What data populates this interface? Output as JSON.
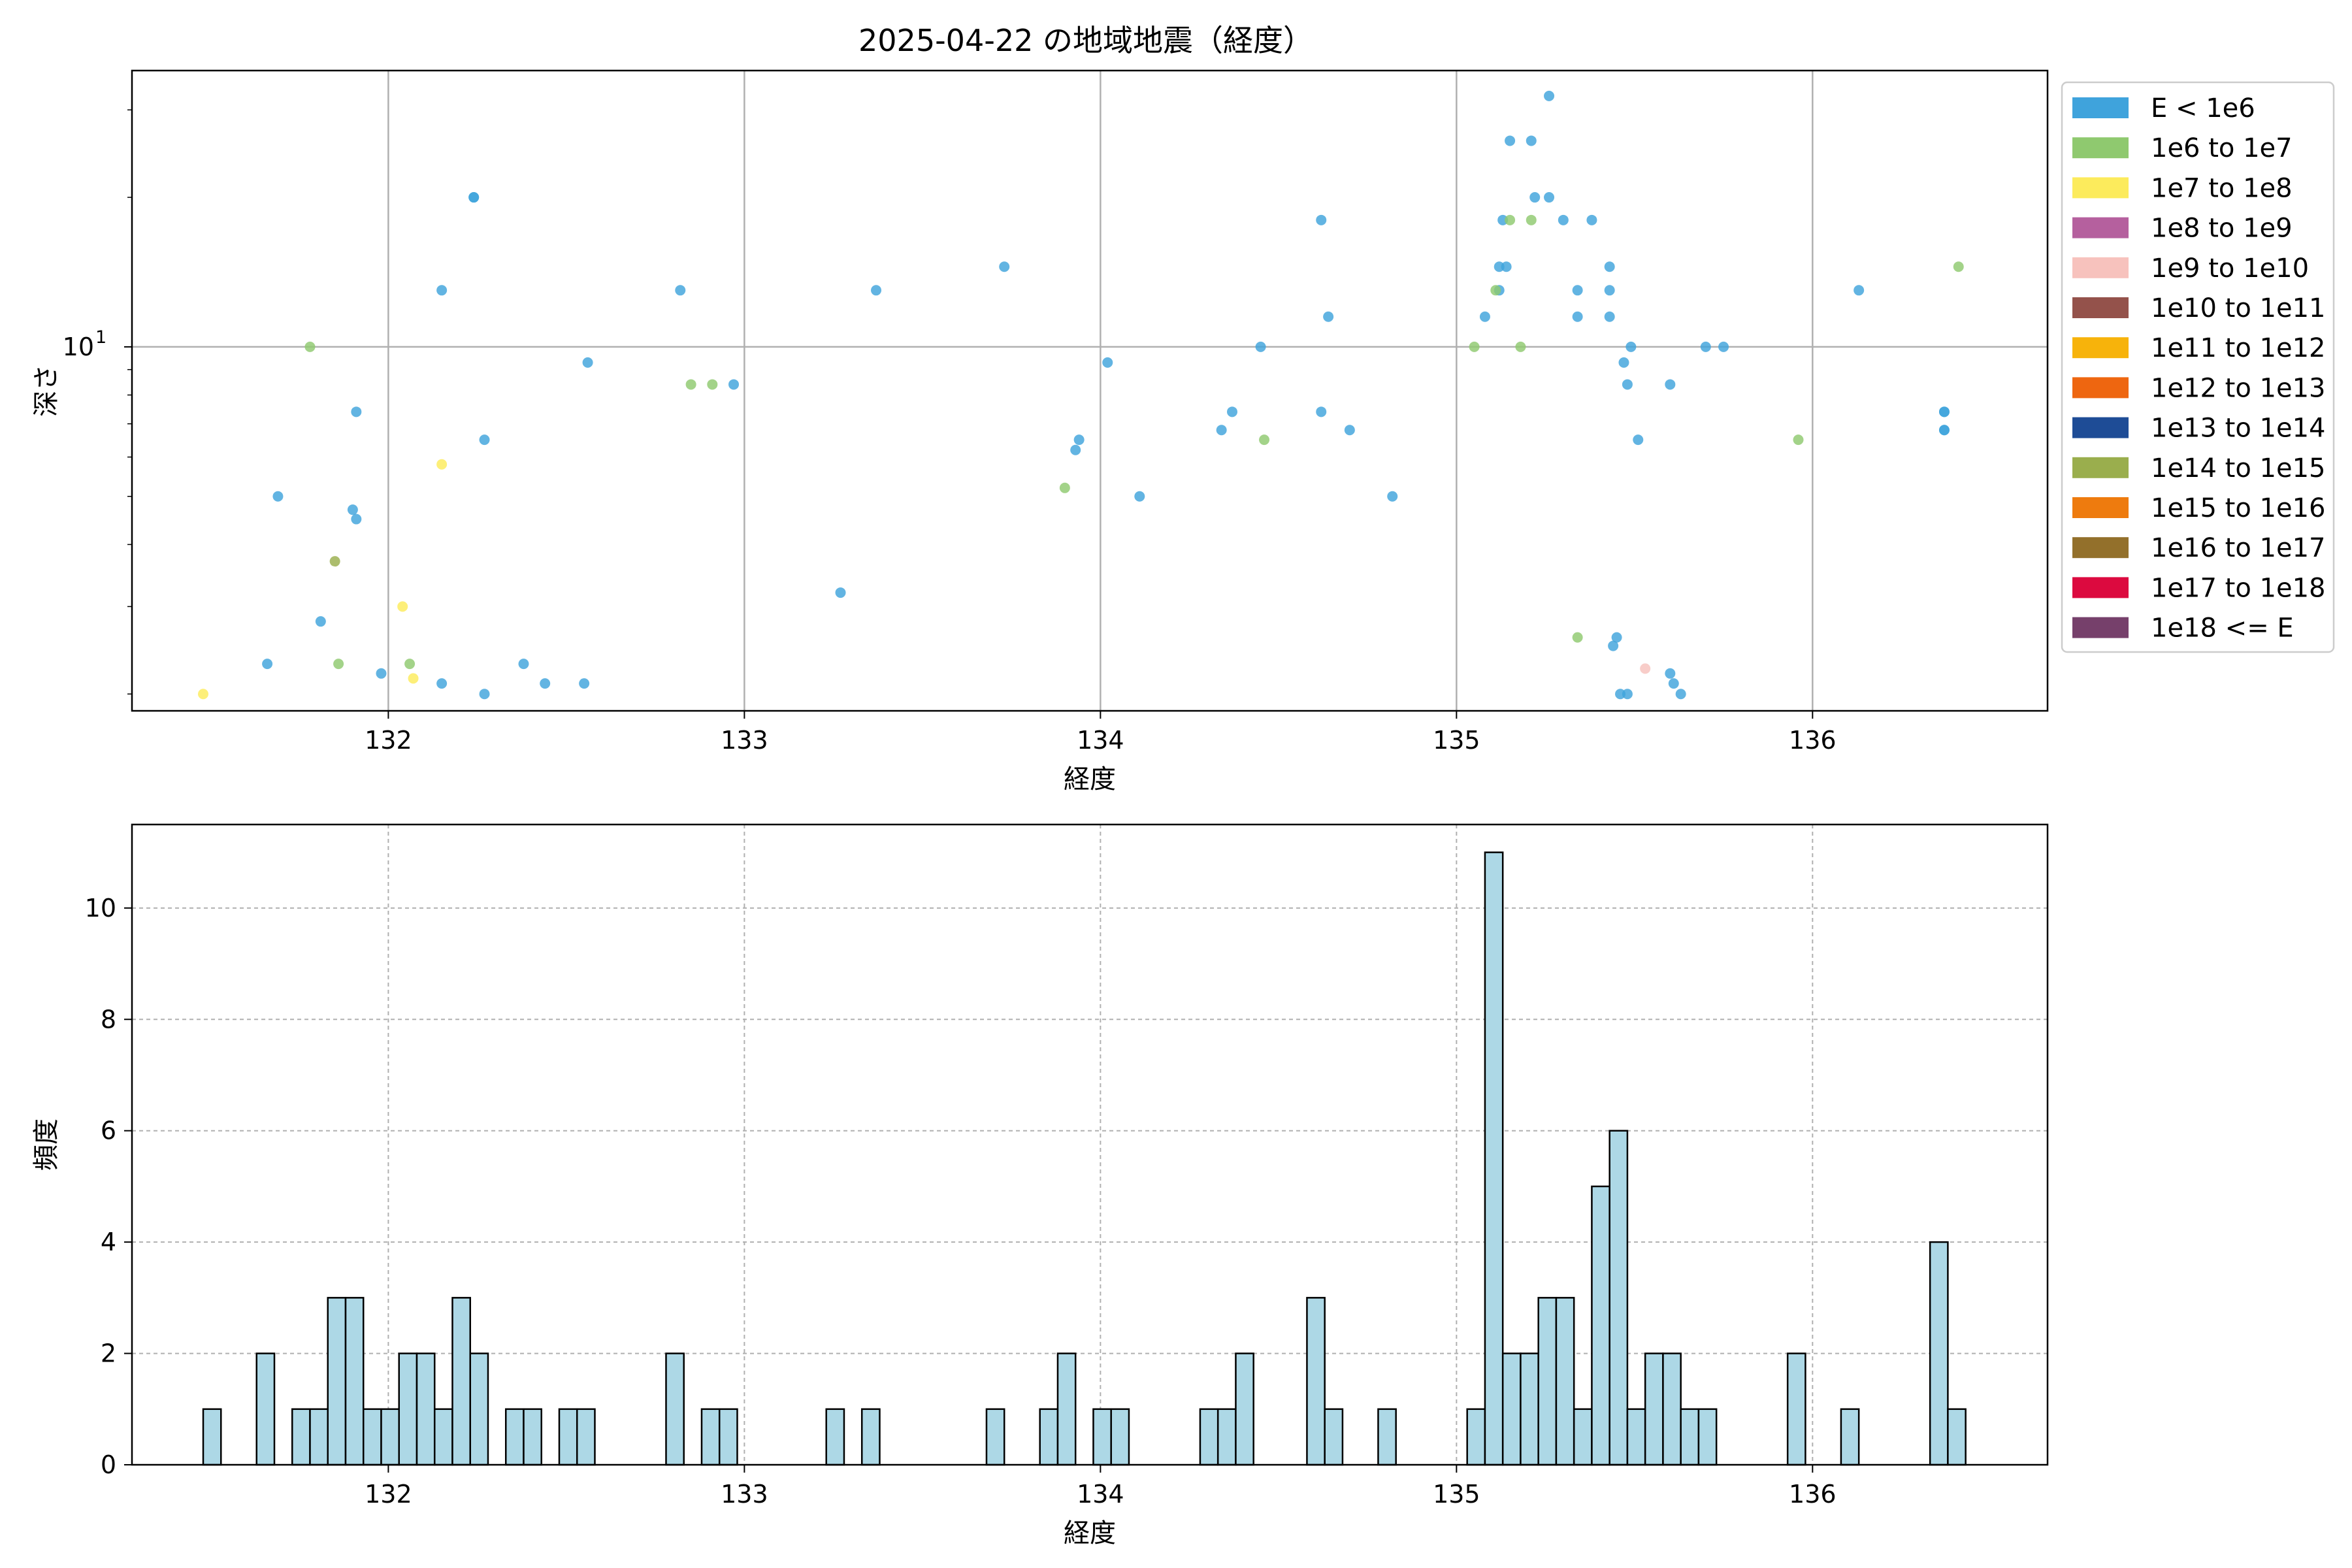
{
  "figure_title": "2025-04-22 の地域地震（経度）",
  "chart_data": [
    {
      "type": "scatter",
      "title": "2025-04-22 の地域地震（経度）",
      "xlabel": "経度",
      "ylabel": "深さ",
      "yscale": "log",
      "xlim": [
        131.28,
        136.66
      ],
      "ylim": [
        1.85,
        36
      ],
      "xticks": [
        {
          "value": 132,
          "label": "132"
        },
        {
          "value": 133,
          "label": "133"
        },
        {
          "value": 134,
          "label": "134"
        },
        {
          "value": 135,
          "label": "135"
        },
        {
          "value": 136,
          "label": "136"
        }
      ],
      "yticks": [
        {
          "value": 10,
          "label": "10",
          "exponent": "1"
        }
      ],
      "grid": true,
      "legend_position": "outside-right",
      "legend": [
        {
          "label": "E < 1e6",
          "color": "#3fa3dc"
        },
        {
          "label": "1e6 to 1e7",
          "color": "#8fc96f"
        },
        {
          "label": "1e7 to 1e8",
          "color": "#fceb5c"
        },
        {
          "label": "1e8 to 1e9",
          "color": "#b5609e"
        },
        {
          "label": "1e9 to 1e10",
          "color": "#f7c2bd"
        },
        {
          "label": "1e10 to 1e11",
          "color": "#94524b"
        },
        {
          "label": "1e11 to 1e12",
          "color": "#f7b30b"
        },
        {
          "label": "1e12 to 1e13",
          "color": "#ee6610"
        },
        {
          "label": "1e13 to 1e14",
          "color": "#1e4c96"
        },
        {
          "label": "1e14 to 1e15",
          "color": "#9aae4d"
        },
        {
          "label": "1e15 to 1e16",
          "color": "#ee7b0e"
        },
        {
          "label": "1e16 to 1e17",
          "color": "#93702b"
        },
        {
          "label": "1e17 to 1e18",
          "color": "#dc0a3f"
        },
        {
          "label": "1e18 <= E",
          "color": "#76406b"
        }
      ],
      "series": [
        {
          "class": 0,
          "points": [
            [
              131.66,
              2.3
            ],
            [
              131.69,
              5.0
            ],
            [
              131.81,
              2.8
            ],
            [
              131.9,
              4.7
            ],
            [
              131.91,
              4.5
            ],
            [
              131.91,
              7.4
            ],
            [
              131.98,
              2.2
            ],
            [
              132.15,
              2.1
            ],
            [
              132.15,
              13.0
            ],
            [
              132.24,
              20.0
            ],
            [
              132.24,
              20.0
            ],
            [
              132.27,
              2.0
            ],
            [
              132.27,
              6.5
            ],
            [
              132.38,
              2.3
            ],
            [
              132.44,
              2.1
            ],
            [
              132.55,
              2.1
            ],
            [
              132.56,
              9.3
            ],
            [
              132.82,
              13.0
            ],
            [
              132.97,
              8.4
            ],
            [
              133.27,
              3.2
            ],
            [
              133.37,
              13.0
            ],
            [
              133.73,
              14.5
            ],
            [
              133.93,
              6.2
            ],
            [
              133.94,
              6.5
            ],
            [
              134.02,
              9.3
            ],
            [
              134.11,
              5.0
            ],
            [
              134.34,
              6.8
            ],
            [
              134.37,
              7.4
            ],
            [
              134.45,
              10.0
            ],
            [
              134.62,
              7.4
            ],
            [
              134.62,
              18.0
            ],
            [
              134.64,
              11.5
            ],
            [
              134.7,
              6.8
            ],
            [
              134.82,
              5.0
            ],
            [
              135.08,
              11.5
            ],
            [
              135.12,
              13.0
            ],
            [
              135.12,
              14.5
            ],
            [
              135.13,
              18.0
            ],
            [
              135.14,
              14.5
            ],
            [
              135.15,
              26.0
            ],
            [
              135.21,
              26.0
            ],
            [
              135.22,
              20.0
            ],
            [
              135.26,
              20.0
            ],
            [
              135.26,
              32.0
            ],
            [
              135.3,
              18.0
            ],
            [
              135.34,
              11.5
            ],
            [
              135.34,
              13.0
            ],
            [
              135.38,
              18.0
            ],
            [
              135.43,
              11.5
            ],
            [
              135.43,
              13.0
            ],
            [
              135.43,
              14.5
            ],
            [
              135.44,
              2.5
            ],
            [
              135.45,
              2.6
            ],
            [
              135.46,
              2.0
            ],
            [
              135.47,
              9.3
            ],
            [
              135.48,
              2.0
            ],
            [
              135.48,
              8.4
            ],
            [
              135.49,
              10.0
            ],
            [
              135.51,
              6.5
            ],
            [
              135.6,
              2.2
            ],
            [
              135.6,
              8.4
            ],
            [
              135.61,
              2.1
            ],
            [
              135.63,
              2.0
            ],
            [
              135.7,
              10.0
            ],
            [
              135.75,
              10.0
            ],
            [
              136.13,
              13.0
            ],
            [
              136.37,
              6.8
            ],
            [
              136.37,
              6.8
            ],
            [
              136.37,
              7.4
            ],
            [
              136.37,
              7.4
            ]
          ]
        },
        {
          "class": 1,
          "points": [
            [
              131.78,
              10.0
            ],
            [
              131.86,
              2.3
            ],
            [
              132.06,
              2.3
            ],
            [
              132.85,
              8.4
            ],
            [
              132.91,
              8.4
            ],
            [
              133.9,
              5.2
            ],
            [
              134.46,
              6.5
            ],
            [
              135.05,
              10.0
            ],
            [
              135.11,
              13.0
            ],
            [
              135.15,
              18.0
            ],
            [
              135.18,
              10.0
            ],
            [
              135.21,
              18.0
            ],
            [
              135.34,
              2.6
            ],
            [
              135.96,
              6.5
            ],
            [
              136.41,
              14.5
            ]
          ]
        },
        {
          "class": 2,
          "points": [
            [
              131.48,
              2.0
            ],
            [
              132.04,
              3.0
            ],
            [
              132.07,
              2.15
            ],
            [
              132.15,
              5.8
            ]
          ]
        },
        {
          "class": 9,
          "points": [
            [
              131.85,
              3.7
            ]
          ]
        },
        {
          "class": 4,
          "points": [
            [
              135.53,
              2.25
            ]
          ]
        }
      ]
    },
    {
      "type": "bar",
      "title": "",
      "xlabel": "経度",
      "ylabel": "頻度",
      "xlim": [
        131.28,
        136.66
      ],
      "ylim": [
        0,
        11.5
      ],
      "xticks": [
        {
          "value": 132,
          "label": "132"
        },
        {
          "value": 133,
          "label": "133"
        },
        {
          "value": 134,
          "label": "134"
        },
        {
          "value": 135,
          "label": "135"
        },
        {
          "value": 136,
          "label": "136"
        }
      ],
      "yticks": [
        {
          "value": 0,
          "label": "0"
        },
        {
          "value": 2,
          "label": "2"
        },
        {
          "value": 4,
          "label": "4"
        },
        {
          "value": 6,
          "label": "6"
        },
        {
          "value": 8,
          "label": "8"
        },
        {
          "value": 10,
          "label": "10"
        }
      ],
      "grid": true,
      "bar_color": "#add8e6",
      "edge_color": "#000000",
      "bin_width": 0.05,
      "bins": [
        [
          131.48,
          1
        ],
        [
          131.63,
          2
        ],
        [
          131.73,
          1
        ],
        [
          131.78,
          1
        ],
        [
          131.83,
          3
        ],
        [
          131.88,
          3
        ],
        [
          131.93,
          1
        ],
        [
          131.98,
          1
        ],
        [
          132.03,
          2
        ],
        [
          132.08,
          2
        ],
        [
          132.13,
          1
        ],
        [
          132.18,
          3
        ],
        [
          132.23,
          2
        ],
        [
          132.33,
          1
        ],
        [
          132.38,
          1
        ],
        [
          132.48,
          1
        ],
        [
          132.53,
          1
        ],
        [
          132.78,
          2
        ],
        [
          132.88,
          1
        ],
        [
          132.93,
          1
        ],
        [
          133.23,
          1
        ],
        [
          133.33,
          1
        ],
        [
          133.68,
          1
        ],
        [
          133.83,
          1
        ],
        [
          133.88,
          2
        ],
        [
          133.98,
          1
        ],
        [
          134.03,
          1
        ],
        [
          134.28,
          1
        ],
        [
          134.33,
          1
        ],
        [
          134.38,
          2
        ],
        [
          134.58,
          3
        ],
        [
          134.63,
          1
        ],
        [
          134.78,
          1
        ],
        [
          135.03,
          1
        ],
        [
          135.08,
          11
        ],
        [
          135.13,
          2
        ],
        [
          135.18,
          2
        ],
        [
          135.23,
          3
        ],
        [
          135.28,
          3
        ],
        [
          135.33,
          1
        ],
        [
          135.38,
          5
        ],
        [
          135.43,
          6
        ],
        [
          135.48,
          1
        ],
        [
          135.53,
          2
        ],
        [
          135.58,
          2
        ],
        [
          135.63,
          1
        ],
        [
          135.68,
          1
        ],
        [
          135.93,
          2
        ],
        [
          136.08,
          1
        ],
        [
          136.33,
          4
        ],
        [
          136.38,
          1
        ]
      ]
    }
  ]
}
